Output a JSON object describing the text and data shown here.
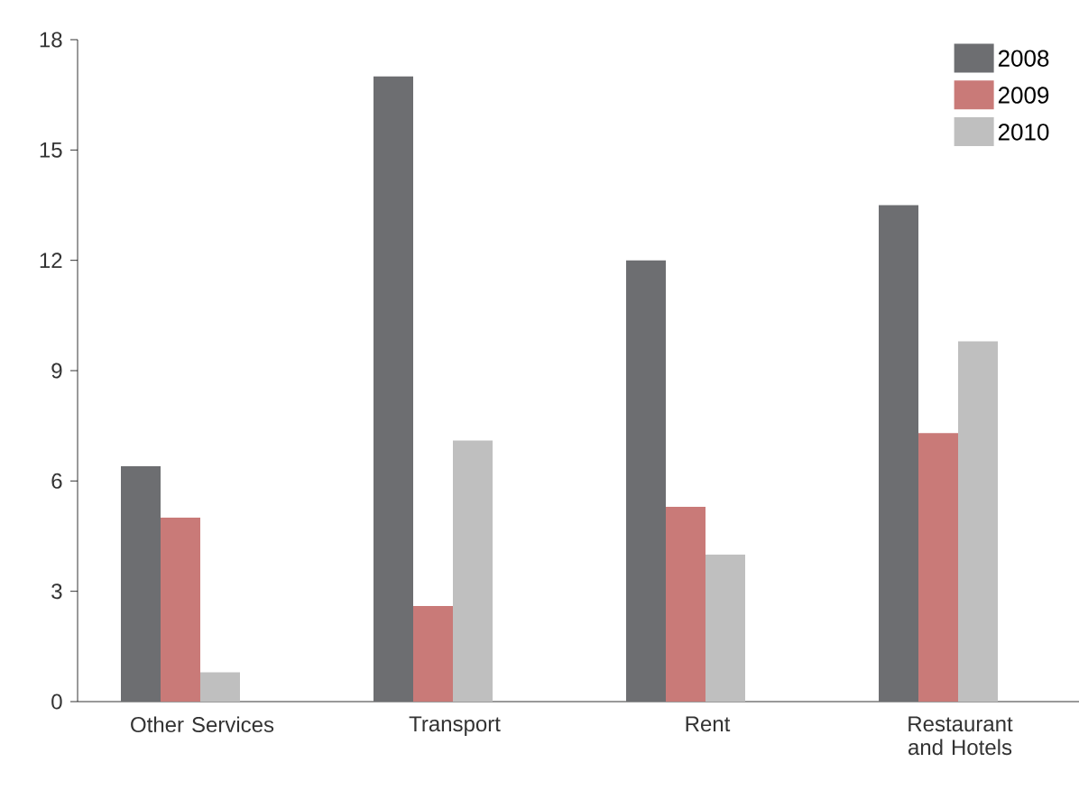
{
  "chart_data": {
    "type": "bar",
    "categories": [
      "Other Services",
      "Transport",
      "Rent",
      "Restaurant and Hotels"
    ],
    "series": [
      {
        "name": "2008",
        "color": "#6d6e71",
        "values": [
          6.4,
          17.0,
          12.0,
          13.5
        ]
      },
      {
        "name": "2009",
        "color": "#c97a78",
        "values": [
          5.0,
          2.6,
          5.3,
          7.3
        ]
      },
      {
        "name": "2010",
        "color": "#bfbfbf",
        "values": [
          0.8,
          7.1,
          4.0,
          9.8
        ]
      }
    ],
    "ylim": [
      0,
      18
    ],
    "yticks": [
      0,
      3,
      6,
      9,
      12,
      15,
      18
    ],
    "legend": "top right"
  }
}
